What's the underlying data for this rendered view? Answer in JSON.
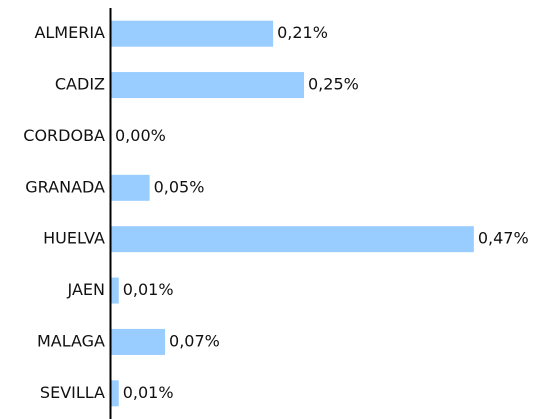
{
  "chart_data": {
    "type": "bar",
    "orientation": "horizontal",
    "categories": [
      "ALMERIA",
      "CADIZ",
      "CORDOBA",
      "GRANADA",
      "HUELVA",
      "JAEN",
      "MALAGA",
      "SEVILLA"
    ],
    "values": [
      0.21,
      0.25,
      0.0,
      0.05,
      0.47,
      0.01,
      0.07,
      0.01
    ],
    "value_labels": [
      "0,21%",
      "0,25%",
      "0,00%",
      "0,05%",
      "0,47%",
      "0,01%",
      "0,07%",
      "0,01%"
    ],
    "color": "#99ccff",
    "xlim": [
      0,
      0.5
    ]
  }
}
